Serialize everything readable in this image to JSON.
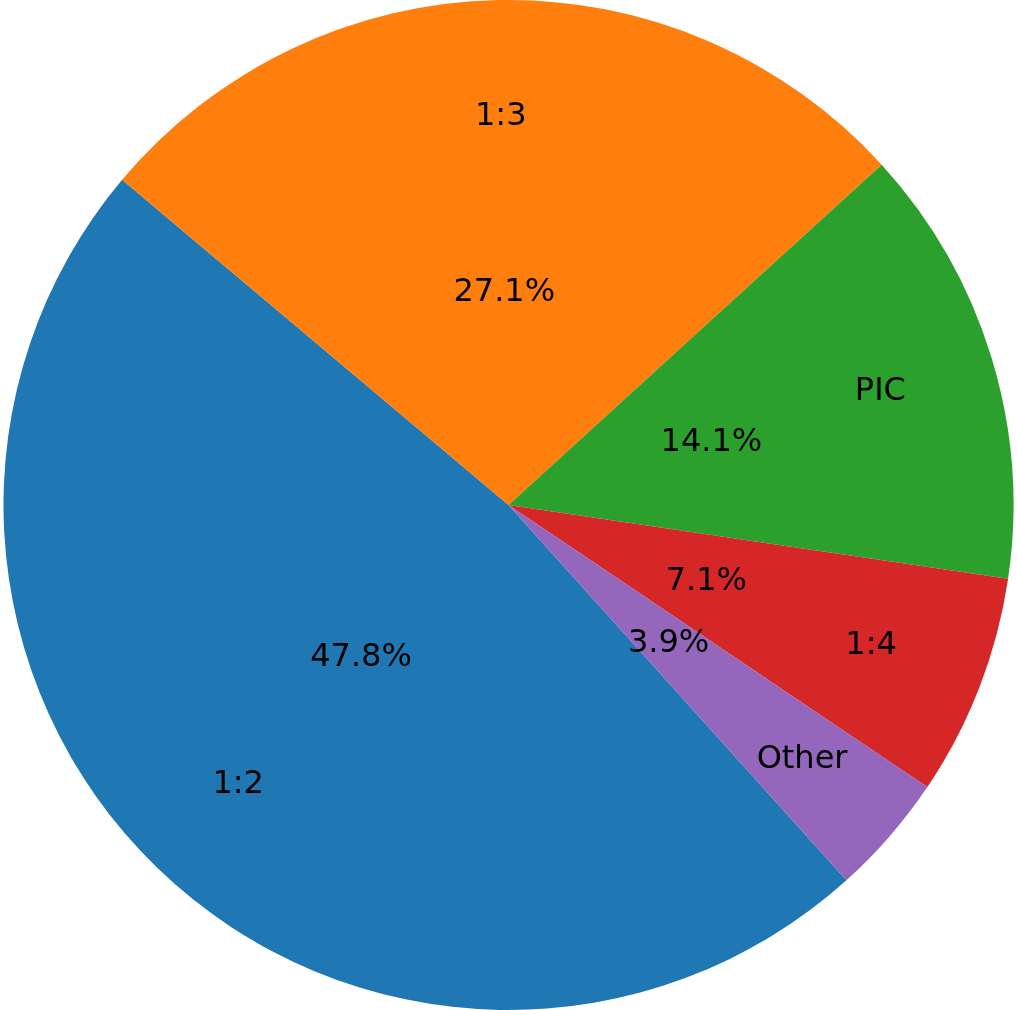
{
  "chart_data": {
    "type": "pie",
    "categories": [
      "1:2",
      "1:3",
      "PIC",
      "1:4",
      "Other"
    ],
    "values": [
      47.8,
      27.1,
      14.1,
      7.1,
      3.9
    ],
    "colors": [
      "#1f77b4",
      "#ff7f0e",
      "#2ca02c",
      "#d62728",
      "#9467bd"
    ],
    "value_labels": [
      "47.8%",
      "27.1%",
      "14.1%",
      "7.1%",
      "3.9%"
    ]
  }
}
